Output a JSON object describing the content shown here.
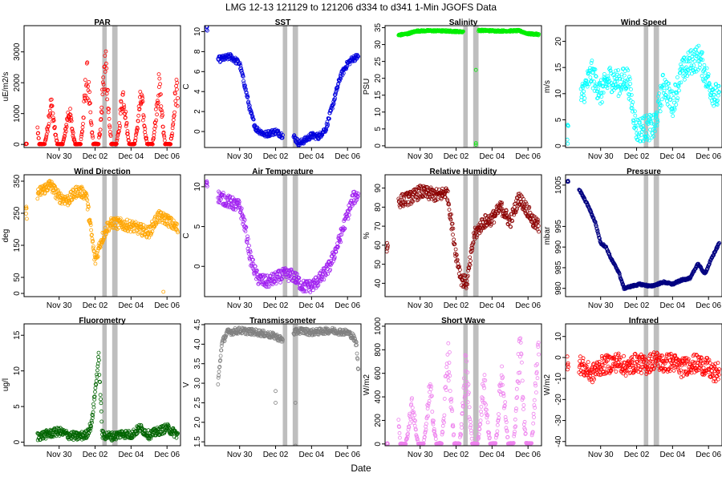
{
  "title": "LMG   12-13     121129 to 121206     d334 to d341    1-Min  JGOFS Data",
  "xlabel": "Date",
  "x_ticks": [
    "Nov 30",
    "Dec 02",
    "Dec 04",
    "Dec 06"
  ],
  "x_tick_days": [
    1,
    3,
    5,
    7
  ],
  "x_range_days": [
    -0.95,
    7.75
  ],
  "gray_bands_days": [
    [
      3.4,
      3.65
    ],
    [
      3.95,
      4.25
    ]
  ],
  "chart_data": [
    {
      "type": "scatter",
      "title": "PAR",
      "ylabel": "uE/m2/s",
      "color": "#ff0000",
      "ylim": [
        -100,
        3850
      ],
      "yticks": [
        0,
        1000,
        2000,
        3000
      ],
      "ytick_labels": [
        "0",
        "1000",
        "2000",
        "3000"
      ],
      "shape": "diurnal",
      "params": {
        "base": 0,
        "peaks": [
          2500,
          1600,
          1300,
          2700,
          3200,
          2000,
          1800,
          2300
        ],
        "spread": 0.15
      },
      "segments": [
        [
          -0.85,
          -0.8
        ],
        [
          -0.2,
          7.6
        ]
      ]
    },
    {
      "type": "scatter",
      "title": "SST",
      "ylabel": "C",
      "color": "#0000dd",
      "ylim": [
        -1.6,
        10.6
      ],
      "yticks": [
        0,
        2,
        4,
        6,
        8,
        10
      ],
      "ytick_labels": [
        "0",
        "2",
        "4",
        "6",
        "8",
        "10"
      ],
      "shape": "series",
      "params": {
        "x": [
          -0.85,
          -0.8,
          -0.2,
          0.5,
          1.0,
          1.3,
          1.6,
          1.9,
          2.4,
          3.0,
          3.4,
          4.0,
          4.3,
          4.6,
          5.0,
          5.4,
          5.8,
          6.2,
          6.6,
          7.0,
          7.3,
          7.6
        ],
        "y": [
          10.2,
          10.3,
          7.2,
          7.5,
          6.8,
          4.5,
          2.0,
          0.3,
          -0.3,
          0,
          -0.4,
          -0.5,
          -1.2,
          -0.9,
          -0.4,
          -0.5,
          0.3,
          2.8,
          5.5,
          6.8,
          7.3,
          7.5
        ],
        "noise": 0.3
      },
      "segments": [
        [
          -0.85,
          -0.8
        ],
        [
          -0.2,
          3.4
        ],
        [
          4.0,
          7.6
        ]
      ]
    },
    {
      "type": "scatter",
      "title": "Salinity",
      "ylabel": "PSU",
      "color": "#00ee00",
      "ylim": [
        -0.5,
        35.6
      ],
      "yticks": [
        0,
        5,
        10,
        15,
        20,
        25,
        30,
        35
      ],
      "ytick_labels": [
        "0",
        "5",
        "10",
        "15",
        "20",
        "25",
        "30",
        "35"
      ],
      "shape": "series",
      "params": {
        "x": [
          -0.2,
          0.3,
          0.8,
          1.5,
          2.5,
          3.3,
          4.3,
          5.5,
          6.5,
          7.0,
          7.6
        ],
        "y": [
          32.8,
          33.2,
          34.0,
          34.1,
          34.0,
          33.8,
          34.2,
          34.0,
          34.1,
          33.2,
          33.0
        ],
        "noise": 0.25
      },
      "segments": [
        [
          -0.2,
          3.4
        ],
        [
          4.25,
          7.6
        ]
      ],
      "outliers": [
        [
          4.1,
          22.5
        ],
        [
          4.1,
          0.3
        ],
        [
          4.1,
          0.8
        ]
      ]
    },
    {
      "type": "scatter",
      "title": "Wind Speed",
      "ylabel": "m/s",
      "color": "#00ffff",
      "ylim": [
        -0.3,
        23
      ],
      "yticks": [
        0,
        5,
        10,
        15,
        20
      ],
      "ytick_labels": [
        "0",
        "5",
        "10",
        "15",
        "20"
      ],
      "shape": "series",
      "params": {
        "x": [
          -0.85,
          -0.8,
          0.0,
          0.5,
          1.0,
          1.5,
          2.0,
          2.5,
          3.0,
          3.5,
          4.0,
          4.5,
          5.0,
          5.5,
          6.0,
          6.5,
          7.0,
          7.3,
          7.6
        ],
        "y": [
          2.5,
          3.0,
          10,
          14,
          10,
          13,
          12,
          13,
          3,
          3.5,
          3.5,
          12,
          8,
          14,
          16,
          17,
          12,
          10,
          9
        ],
        "noise": 2.5
      },
      "segments": [
        [
          -0.85,
          -0.8
        ],
        [
          -0.1,
          7.6
        ]
      ]
    },
    {
      "type": "scatter",
      "title": "Wind Direction",
      "ylabel": "deg",
      "color": "#ffa500",
      "ylim": [
        -10,
        370
      ],
      "yticks": [
        0,
        50,
        150,
        250,
        350
      ],
      "ytick_labels": [
        "0",
        "50",
        "150",
        "250",
        "350"
      ],
      "shape": "series",
      "params": {
        "x": [
          -0.85,
          -0.8,
          -0.2,
          0.5,
          1.0,
          1.5,
          2.0,
          2.5,
          3.0,
          3.3,
          3.7,
          4.0,
          5.0,
          6.0,
          6.5,
          7.0,
          7.6
        ],
        "y": [
          260,
          250,
          310,
          340,
          300,
          290,
          320,
          310,
          100,
          160,
          210,
          220,
          210,
          190,
          240,
          230,
          200
        ],
        "noise": 18
      },
      "segments": [
        [
          -0.85,
          -0.8
        ],
        [
          -0.2,
          7.6
        ]
      ],
      "outliers": [
        [
          6.8,
          5
        ]
      ]
    },
    {
      "type": "scatter",
      "title": "Air Temperature",
      "ylabel": "C",
      "color": "#a020f0",
      "ylim": [
        -3.8,
        11.5
      ],
      "yticks": [
        0,
        5,
        10
      ],
      "ytick_labels": [
        "0",
        "5",
        "10"
      ],
      "shape": "series",
      "params": {
        "x": [
          -0.85,
          -0.8,
          -0.2,
          0.5,
          1.0,
          1.3,
          1.6,
          2.0,
          2.5,
          3.0,
          3.5,
          4.0,
          4.5,
          5.0,
          5.5,
          6.0,
          6.5,
          7.0,
          7.3,
          7.6
        ],
        "y": [
          10.5,
          10.8,
          8.8,
          8.0,
          7.5,
          5.0,
          1.0,
          -1.5,
          -2.0,
          -1.5,
          -1.0,
          -1.2,
          -2.5,
          -2.5,
          -1.5,
          0.0,
          3.0,
          6.5,
          8.5,
          9.0
        ],
        "noise": 0.8
      },
      "segments": [
        [
          -0.85,
          -0.8
        ],
        [
          -0.2,
          7.6
        ]
      ]
    },
    {
      "type": "scatter",
      "title": "Relative Humidity",
      "ylabel": "%",
      "color": "#8b0000",
      "ylim": [
        33,
        97
      ],
      "yticks": [
        40,
        50,
        60,
        70,
        80,
        90
      ],
      "ytick_labels": [
        "40",
        "50",
        "60",
        "70",
        "80",
        "90"
      ],
      "shape": "series",
      "params": {
        "x": [
          -0.85,
          -0.8,
          -0.2,
          0.5,
          1.0,
          1.5,
          2.0,
          2.5,
          3.0,
          3.3,
          3.6,
          4.0,
          4.5,
          5.0,
          5.5,
          6.0,
          6.5,
          7.0,
          7.3,
          7.6
        ],
        "y": [
          59,
          60,
          83,
          85,
          88,
          87,
          86,
          88,
          55,
          42,
          40,
          65,
          72,
          74,
          80,
          72,
          85,
          78,
          72,
          70
        ],
        "noise": 3.5
      },
      "segments": [
        [
          -0.85,
          -0.8
        ],
        [
          -0.2,
          7.6
        ]
      ]
    },
    {
      "type": "scatter",
      "title": "Pressure",
      "ylabel": "mbar",
      "color": "#000080",
      "ylim": [
        978,
        1007.5
      ],
      "yticks": [
        980,
        985,
        990,
        995,
        1005
      ],
      "ytick_labels": [
        "980",
        "985",
        "990",
        "995",
        "1005"
      ],
      "shape": "series",
      "params": {
        "x": [
          -0.85,
          -0.8,
          -0.2,
          0.3,
          0.7,
          1.0,
          1.3,
          1.6,
          2.0,
          2.3,
          2.7,
          3.2,
          3.8,
          4.5,
          5.0,
          5.5,
          6.0,
          6.4,
          6.8,
          7.2,
          7.6
        ],
        "y": [
          1006,
          1006,
          1004,
          1000,
          996,
          991,
          990,
          987,
          984,
          980,
          980.5,
          981,
          980.5,
          981.5,
          981,
          982,
          982.5,
          986,
          983.5,
          987.5,
          991
        ],
        "noise": 0.25
      },
      "segments": [
        [
          -0.85,
          -0.8
        ],
        [
          -0.2,
          7.6
        ]
      ]
    },
    {
      "type": "scatter",
      "title": "Fluorometry",
      "ylabel": "ug/l",
      "color": "#006400",
      "ylim": [
        -0.5,
        16.6
      ],
      "yticks": [
        0,
        5,
        10,
        15
      ],
      "ytick_labels": [
        "0",
        "5",
        "10",
        "15"
      ],
      "shape": "series",
      "params": {
        "x": [
          -0.2,
          0.5,
          1.0,
          1.5,
          2.0,
          2.5,
          2.8,
          3.0,
          3.2,
          3.4,
          4.0,
          4.5,
          5.0,
          5.5,
          6.0,
          6.5,
          7.0,
          7.6
        ],
        "y": [
          0.8,
          1.2,
          1.5,
          1.0,
          0.8,
          1.0,
          2.5,
          7.0,
          12.0,
          1.0,
          0.8,
          1.2,
          1.0,
          2.0,
          1.0,
          1.5,
          2.0,
          1.0
        ],
        "noise": 0.6
      },
      "segments": [
        [
          -0.2,
          7.6
        ]
      ]
    },
    {
      "type": "scatter",
      "title": "Transmissometer",
      "ylabel": "V",
      "color": "#808080",
      "ylim": [
        1.4,
        4.52
      ],
      "yticks": [
        1.5,
        2.0,
        2.5,
        3.0,
        3.5,
        4.0,
        4.5
      ],
      "ytick_labels": [
        "1.5",
        "2.0",
        "2.5",
        "3.0",
        "3.5",
        "4.0",
        "4.5"
      ],
      "shape": "series",
      "params": {
        "x": [
          -0.2,
          0.0,
          0.3,
          1.0,
          2.0,
          3.0,
          3.4,
          4.0,
          4.4,
          5.0,
          6.0,
          7.0,
          7.3,
          7.5,
          7.6
        ],
        "y": [
          3.0,
          4.0,
          4.3,
          4.35,
          4.3,
          4.2,
          4.1,
          4.3,
          4.35,
          4.3,
          4.35,
          4.3,
          4.2,
          4.0,
          3.3
        ],
        "noise": 0.08
      },
      "segments": [
        [
          -0.2,
          3.4
        ],
        [
          4.0,
          7.6
        ]
      ],
      "outliers": [
        [
          3.0,
          2.5
        ],
        [
          3.0,
          2.8
        ],
        [
          4.1,
          2.5
        ],
        [
          4.1,
          1.4
        ]
      ]
    },
    {
      "type": "scatter",
      "title": "Short Wave",
      "ylabel": "W/m2",
      "color": "#ee82ee",
      "ylim": [
        -15,
        1020
      ],
      "yticks": [
        0,
        200,
        400,
        600,
        800,
        1000
      ],
      "ytick_labels": [
        "0",
        "200",
        "400",
        "600",
        "800",
        "1000"
      ],
      "shape": "diurnal",
      "params": {
        "base": 0,
        "peaks": [
          900,
          400,
          550,
          950,
          800,
          600,
          750,
          950
        ],
        "spread": 0.15
      },
      "segments": [
        [
          -0.85,
          -0.8
        ],
        [
          -0.2,
          7.6
        ]
      ]
    },
    {
      "type": "scatter",
      "title": "Infrared",
      "ylabel": "W/m2",
      "color": "#ff0000",
      "ylim": [
        -42,
        16
      ],
      "yticks": [
        -40,
        -30,
        -20,
        -10,
        0,
        10
      ],
      "ytick_labels": [
        "-40",
        "-30",
        "-20",
        "-10",
        "0",
        "10"
      ],
      "shape": "series",
      "params": {
        "x": [
          -0.85,
          -0.8,
          -0.2,
          0.5,
          1.0,
          1.5,
          2.0,
          2.5,
          3.0,
          3.5,
          4.0,
          4.5,
          5.0,
          5.5,
          6.0,
          6.5,
          7.0,
          7.3,
          7.6
        ],
        "y": [
          -1,
          -2,
          -3,
          -8,
          -4,
          -3,
          -2,
          -5,
          -2,
          -4,
          -1,
          -3,
          -2,
          -5,
          -3,
          -3,
          -5,
          -8,
          -6
        ],
        "noise": 4.5
      },
      "segments": [
        [
          -0.85,
          -0.8
        ],
        [
          -0.2,
          7.6
        ]
      ]
    }
  ]
}
